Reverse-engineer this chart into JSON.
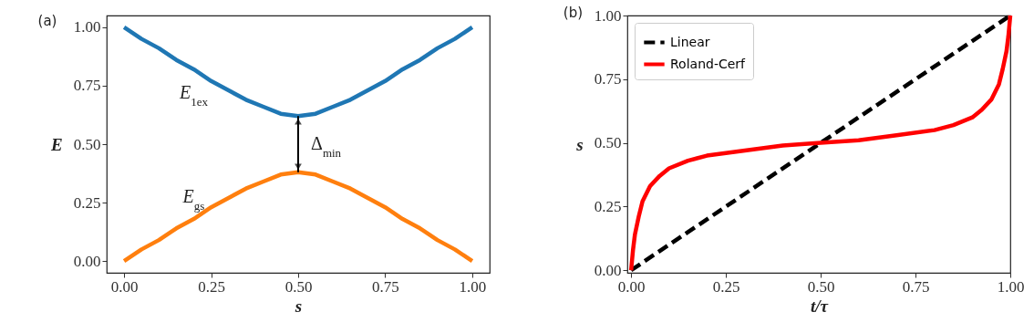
{
  "chart_data": [
    {
      "type": "line",
      "title": "(a)",
      "xlabel": "s",
      "ylabel": "E",
      "xlim": [
        -0.05,
        1.05
      ],
      "ylim": [
        -0.05,
        1.05
      ],
      "xticks": [
        {
          "value": 0,
          "label": "0.00"
        },
        {
          "value": 0.25,
          "label": "0.25"
        },
        {
          "value": 0.5,
          "label": "0.50"
        },
        {
          "value": 0.75,
          "label": "0.75"
        },
        {
          "value": 1,
          "label": "1.00"
        }
      ],
      "yticks": [
        {
          "value": 0,
          "label": "0.00"
        },
        {
          "value": 0.25,
          "label": "0.25"
        },
        {
          "value": 0.5,
          "label": "0.50"
        },
        {
          "value": 0.75,
          "label": "0.75"
        },
        {
          "value": 1,
          "label": "1.00"
        }
      ],
      "x": [
        0,
        0.05,
        0.1,
        0.15,
        0.2,
        0.25,
        0.3,
        0.35,
        0.4,
        0.45,
        0.5,
        0.55,
        0.6,
        0.65,
        0.7,
        0.75,
        0.8,
        0.85,
        0.9,
        0.95,
        1
      ],
      "series": [
        {
          "name": "E$_{1ex}$",
          "color": "#1f77b4",
          "values": [
            1.0,
            0.95,
            0.91,
            0.86,
            0.82,
            0.77,
            0.73,
            0.69,
            0.66,
            0.63,
            0.62,
            0.63,
            0.66,
            0.69,
            0.73,
            0.77,
            0.82,
            0.86,
            0.91,
            0.95,
            1.0
          ]
        },
        {
          "name": "E$_{gs}$",
          "color": "#ff7f0e",
          "values": [
            0.0,
            0.05,
            0.09,
            0.14,
            0.18,
            0.23,
            0.27,
            0.31,
            0.34,
            0.37,
            0.38,
            0.37,
            0.34,
            0.31,
            0.27,
            0.23,
            0.18,
            0.14,
            0.09,
            0.05,
            0.0
          ]
        }
      ],
      "annotations": [
        "Δ$_{min}$"
      ],
      "legend": false,
      "grid": false
    },
    {
      "type": "line",
      "title": "(b)",
      "xlabel": "t/τ",
      "ylabel": "s",
      "xlim": [
        -0.01,
        1.0
      ],
      "ylim": [
        -0.01,
        1.0
      ],
      "xticks": [
        {
          "value": 0,
          "label": "0.00"
        },
        {
          "value": 0.25,
          "label": "0.25"
        },
        {
          "value": 0.5,
          "label": "0.50"
        },
        {
          "value": 0.75,
          "label": "0.75"
        },
        {
          "value": 1,
          "label": "1.00"
        }
      ],
      "yticks": [
        {
          "value": 0,
          "label": "0.00"
        },
        {
          "value": 0.25,
          "label": "0.25"
        },
        {
          "value": 0.5,
          "label": "0.50"
        },
        {
          "value": 0.75,
          "label": "0.75"
        },
        {
          "value": 1,
          "label": "1.00"
        }
      ],
      "series": [
        {
          "name": "Linear",
          "color": "#000000",
          "line_style": "dashed",
          "x": [
            0,
            1
          ],
          "values": [
            0,
            1
          ]
        },
        {
          "name": "Roland-Cerf",
          "color": "#ff0000",
          "line_style": "solid",
          "x": [
            0,
            0.005,
            0.01,
            0.02,
            0.03,
            0.05,
            0.075,
            0.1,
            0.15,
            0.2,
            0.3,
            0.4,
            0.5,
            0.6,
            0.7,
            0.8,
            0.85,
            0.9,
            0.925,
            0.95,
            0.97,
            0.98,
            0.99,
            0.995,
            1
          ],
          "values": [
            0,
            0.08,
            0.14,
            0.21,
            0.27,
            0.33,
            0.37,
            0.4,
            0.43,
            0.45,
            0.47,
            0.49,
            0.5,
            0.51,
            0.53,
            0.55,
            0.57,
            0.6,
            0.63,
            0.67,
            0.73,
            0.79,
            0.86,
            0.92,
            1
          ]
        }
      ],
      "legend": "top left",
      "grid": false
    }
  ]
}
